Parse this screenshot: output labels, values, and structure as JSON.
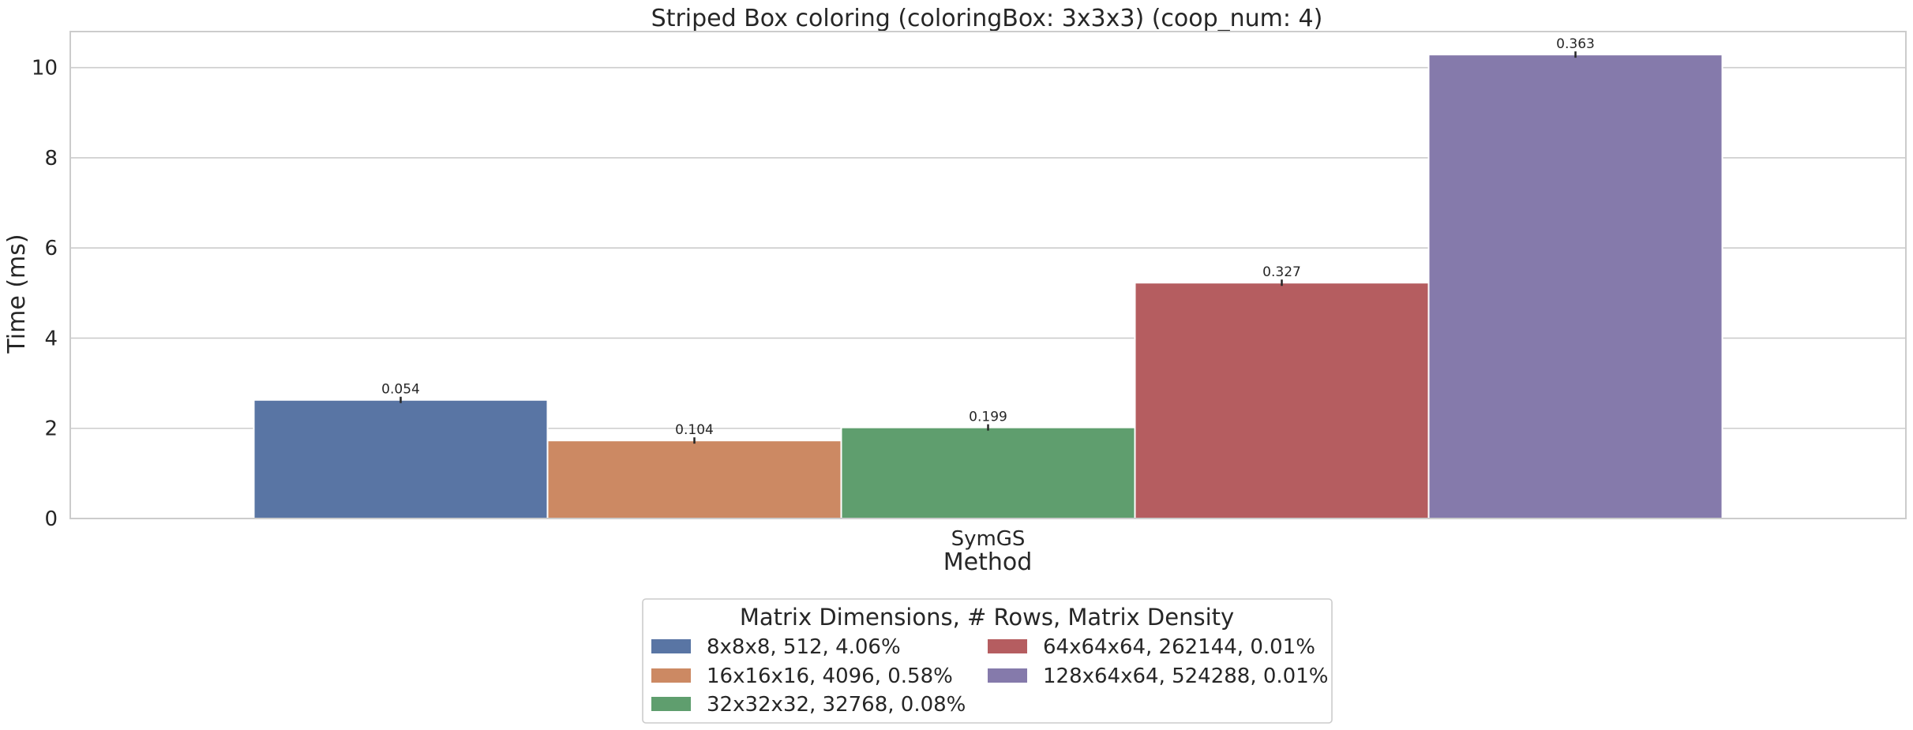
{
  "chart_data": {
    "type": "bar",
    "title": "Striped Box coloring (coloringBox: 3x3x3) (coop_num: 4)",
    "xlabel": "Method",
    "ylabel": "Time (ms)",
    "categories": [
      "SymGS"
    ],
    "ylim": [
      0,
      10.8
    ],
    "yticks": [
      0,
      2,
      4,
      6,
      8,
      10
    ],
    "grid": true,
    "legend": {
      "title": "Matrix Dimensions, # Rows, Matrix Density",
      "placement": "bottom-center",
      "columns": 2
    },
    "series": [
      {
        "name": "8x8x8, 512, 4.06%",
        "values": [
          2.63
        ],
        "label": "0.054",
        "color": "#5975a4"
      },
      {
        "name": "16x16x16, 4096, 0.58%",
        "values": [
          1.73
        ],
        "label": "0.104",
        "color": "#cc8963"
      },
      {
        "name": "32x32x32, 32768, 0.08%",
        "values": [
          2.02
        ],
        "label": "0.199",
        "color": "#5f9e6e"
      },
      {
        "name": "64x64x64, 262144, 0.01%",
        "values": [
          5.23
        ],
        "label": "0.327",
        "color": "#b55d60"
      },
      {
        "name": "128x64x64, 524288, 0.01%",
        "values": [
          10.29
        ],
        "label": "0.363",
        "color": "#857aab"
      }
    ]
  }
}
